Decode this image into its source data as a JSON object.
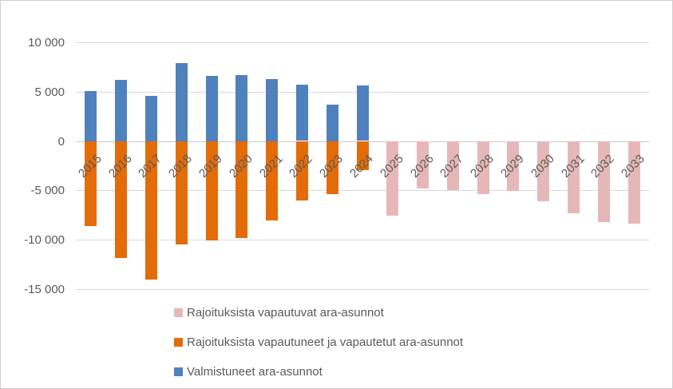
{
  "chart_data": {
    "type": "bar",
    "title": "",
    "xlabel": "",
    "ylabel": "",
    "grid": true,
    "legend_position": "bottom-left",
    "ylim": [
      -15000,
      10000
    ],
    "yticks": [
      10000,
      5000,
      0,
      -5000,
      -10000,
      -15000
    ],
    "ytick_labels": [
      "10 000",
      "5 000",
      "0",
      "-5 000",
      "-10 000",
      "-15 000"
    ],
    "categories": [
      "2015",
      "2016",
      "2017",
      "2018",
      "2019",
      "2020",
      "2021",
      "2022",
      "2023",
      "2024",
      "2025",
      "2026",
      "2027",
      "2028",
      "2029",
      "2030",
      "2031",
      "2032",
      "2033"
    ],
    "series": [
      {
        "id": "vapautuvat",
        "name": "Rajoituksista vapautuvat ara-asunnot",
        "color": "#e5b8b7",
        "values": [
          null,
          null,
          null,
          null,
          null,
          null,
          null,
          null,
          null,
          null,
          -7500,
          -4800,
          -4900,
          -5300,
          -5000,
          -6100,
          -7300,
          -8200,
          -8300
        ]
      },
      {
        "id": "vapautuneet",
        "name": "Rajoituksista vapautuneet ja vapautetut ara-asunnot",
        "color": "#e36c09",
        "values": [
          -8600,
          -11800,
          -14000,
          -10400,
          -10000,
          -9800,
          -8000,
          -6000,
          -5300,
          -2900,
          null,
          null,
          null,
          null,
          null,
          null,
          null,
          null,
          null
        ]
      },
      {
        "id": "valmistuneet",
        "name": "Valmistuneet ara-asunnot",
        "color": "#4f81bd",
        "values": [
          5100,
          6200,
          4600,
          7900,
          6600,
          6700,
          6300,
          5700,
          3700,
          5600,
          null,
          null,
          null,
          null,
          null,
          null,
          null,
          null,
          null
        ]
      }
    ],
    "colors": {
      "gridline": "#d9d9d9",
      "zero_line": "#c9c9c9",
      "axis_text": "#595959",
      "border": "#d0cece"
    }
  }
}
